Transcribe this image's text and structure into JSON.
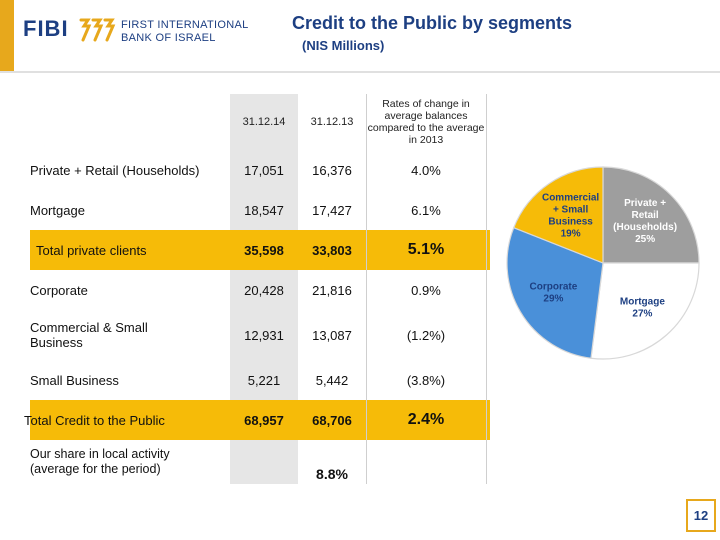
{
  "header": {
    "logo_text": "FIBI",
    "bank_line1": "FIRST INTERNATIONAL",
    "bank_line2": "BANK OF ISRAEL",
    "title": "Credit to the Public by segments",
    "subtitle": "(NIS Millions)"
  },
  "colors": {
    "accent": "#e7a81c",
    "highlight": "#f6bb08",
    "brand_blue": "#1d3f82",
    "pie_gold": "#f6bb08",
    "pie_grey": "#9e9e9e",
    "pie_blue": "#4a90d9",
    "pie_white": "#ffffff"
  },
  "table": {
    "columns": [
      "31.12.14",
      "31.12.13",
      "Rates of change in average balances compared to the average in 2013"
    ],
    "rows": [
      {
        "label": "Private + Retail (Households)",
        "v14": "17,051",
        "v13": "16,376",
        "rate": "4.0%"
      },
      {
        "label": "Mortgage",
        "v14": "18,547",
        "v13": "17,427",
        "rate": "6.1%"
      },
      {
        "label": "Total private clients",
        "v14": "35,598",
        "v13": "33,803",
        "rate": "5.1%"
      },
      {
        "label": "Corporate",
        "v14": "20,428",
        "v13": "21,816",
        "rate": "0.9%"
      },
      {
        "label": "Commercial & Small Business",
        "v14": "12,931",
        "v13": "13,087",
        "rate": "(1.2%)"
      },
      {
        "label": "Small Business",
        "v14": "5,221",
        "v13": "5,442",
        "rate": "(3.8%)"
      },
      {
        "label": "Total Credit to the Public",
        "v14": "68,957",
        "v13": "68,706",
        "rate": "2.4%"
      },
      {
        "label": "Our share in local activity (average for the period)",
        "v14": "",
        "v13": "8.8%",
        "rate": ""
      }
    ]
  },
  "chart_data": {
    "type": "pie",
    "title": "",
    "slices": [
      {
        "label_lines": [
          "Private +",
          "Retail",
          "(Households)",
          "25%"
        ],
        "value": 25,
        "color": "#9e9e9e"
      },
      {
        "label_lines": [
          "Mortgage",
          "27%"
        ],
        "value": 27,
        "color": "#ffffff"
      },
      {
        "label_lines": [
          "Corporate",
          "29%"
        ],
        "value": 29,
        "color": "#4a90d9"
      },
      {
        "label_lines": [
          "Commercial",
          "+ Small",
          "Business",
          "19%"
        ],
        "value": 19,
        "color": "#f6bb08"
      }
    ]
  },
  "page_number": "12"
}
